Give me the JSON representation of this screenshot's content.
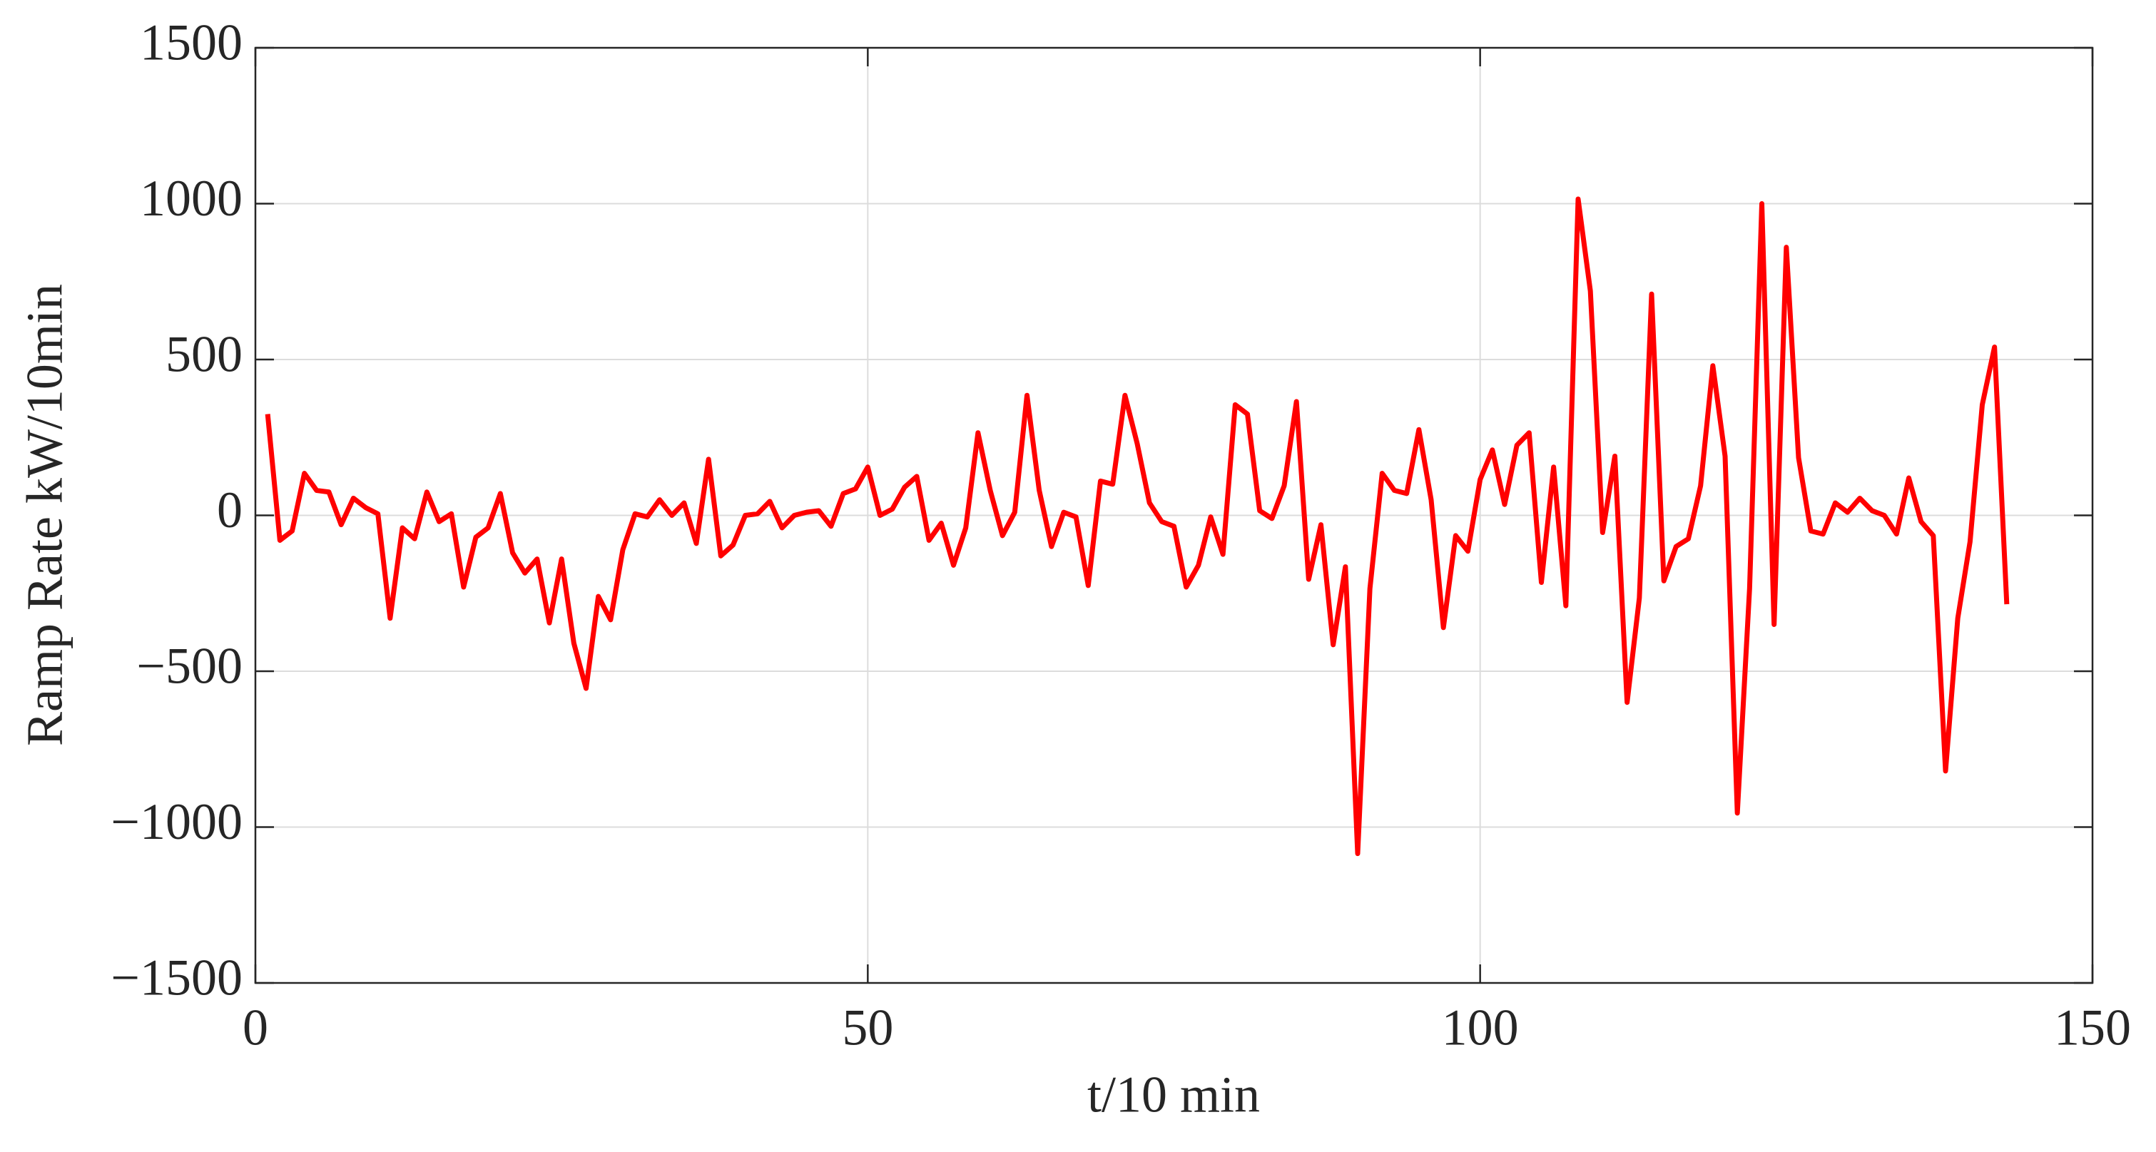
{
  "chart_data": {
    "type": "line",
    "xlabel": "t/10 min",
    "ylabel": "Ramp Rate kW/10min",
    "x": [
      1,
      2,
      3,
      4,
      5,
      6,
      7,
      8,
      9,
      10,
      11,
      12,
      13,
      14,
      15,
      16,
      17,
      18,
      19,
      20,
      21,
      22,
      23,
      24,
      25,
      26,
      27,
      28,
      29,
      30,
      31,
      32,
      33,
      34,
      35,
      36,
      37,
      38,
      39,
      40,
      41,
      42,
      43,
      44,
      45,
      46,
      47,
      48,
      49,
      50,
      51,
      52,
      53,
      54,
      55,
      56,
      57,
      58,
      59,
      60,
      61,
      62,
      63,
      64,
      65,
      66,
      67,
      68,
      69,
      70,
      71,
      72,
      73,
      74,
      75,
      76,
      77,
      78,
      79,
      80,
      81,
      82,
      83,
      84,
      85,
      86,
      87,
      88,
      89,
      90,
      91,
      92,
      93,
      94,
      95,
      96,
      97,
      98,
      99,
      100,
      101,
      102,
      103,
      104,
      105,
      106,
      107,
      108,
      109,
      110,
      111,
      112,
      113,
      114,
      115,
      116,
      117,
      118,
      119,
      120,
      121,
      122,
      123,
      124,
      125,
      126,
      127,
      128,
      129,
      130,
      131,
      132,
      133,
      134,
      135,
      136,
      137,
      138,
      139,
      140,
      141,
      142,
      143
    ],
    "series": [
      {
        "color": "#ff0000",
        "values": [
          325,
          -80,
          -50,
          135,
          80,
          75,
          -30,
          55,
          25,
          5,
          -330,
          -40,
          -75,
          75,
          -20,
          5,
          -230,
          -70,
          -40,
          70,
          -120,
          -185,
          -140,
          -345,
          -140,
          -410,
          -555,
          -260,
          -335,
          -110,
          5,
          -5,
          50,
          0,
          40,
          -90,
          180,
          -130,
          -95,
          0,
          5,
          45,
          -40,
          0,
          10,
          15,
          -35,
          70,
          85,
          155,
          0,
          20,
          90,
          125,
          -80,
          -25,
          -160,
          -40,
          265,
          80,
          -65,
          10,
          385,
          80,
          -100,
          10,
          -5,
          -225,
          110,
          100,
          385,
          230,
          40,
          -20,
          -35,
          -230,
          -160,
          -5,
          -125,
          355,
          325,
          15,
          -10,
          95,
          365,
          -205,
          -30,
          -415,
          -165,
          -1085,
          -235,
          135,
          80,
          70,
          275,
          50,
          -360,
          -65,
          -115,
          115,
          210,
          35,
          225,
          265,
          -215,
          155,
          -290,
          1015,
          720,
          -55,
          190,
          -600,
          -265,
          710,
          -210,
          -100,
          -75,
          95,
          480,
          190,
          -955,
          -235,
          1000,
          -350,
          860,
          185,
          -50,
          -60,
          40,
          10,
          55,
          15,
          0,
          -60,
          120,
          -20,
          -65,
          -820,
          -330,
          -85,
          355,
          540,
          -285
        ]
      }
    ],
    "xlim": [
      0,
      150
    ],
    "xticks": [
      0,
      50,
      100,
      150
    ],
    "ylim": [
      -1500,
      1500
    ],
    "yticks": [
      {
        "value": -1500,
        "label": "−1500"
      },
      {
        "value": -1000,
        "label": "−1000"
      },
      {
        "value": -500,
        "label": "−500"
      },
      0,
      500,
      1000,
      1500
    ],
    "grid": true
  }
}
